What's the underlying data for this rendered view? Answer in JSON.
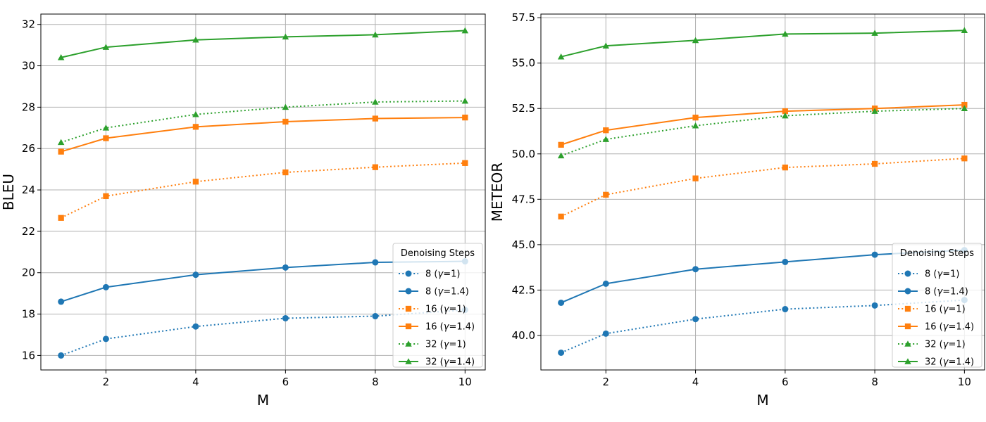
{
  "chart_data": [
    {
      "type": "line",
      "xlabel": "M",
      "ylabel": "BLEU",
      "x": [
        1,
        2,
        4,
        6,
        8,
        10
      ],
      "xlim": [
        0.55,
        10.45
      ],
      "ylim": [
        15.3,
        32.5
      ],
      "xticks": [
        2,
        4,
        6,
        8,
        10
      ],
      "xtick_labels": [
        "2",
        "4",
        "6",
        "8",
        "10"
      ],
      "yticks": [
        16,
        18,
        20,
        22,
        24,
        26,
        28,
        30,
        32
      ],
      "ytick_labels": [
        "16",
        "18",
        "20",
        "22",
        "24",
        "26",
        "28",
        "30",
        "32"
      ],
      "grid": true,
      "legend": {
        "title": "Denoising Steps",
        "placement": "lower-right"
      },
      "series": [
        {
          "name": "8",
          "gamma": "1",
          "values": [
            16.0,
            16.8,
            17.4,
            17.8,
            17.9,
            18.2
          ],
          "color": "#1f77b4",
          "linestyle": "dotted",
          "marker": "circle"
        },
        {
          "name": "8",
          "gamma": "1.4",
          "values": [
            18.6,
            19.3,
            19.9,
            20.25,
            20.5,
            20.55
          ],
          "color": "#1f77b4",
          "linestyle": "solid",
          "marker": "circle"
        },
        {
          "name": "16",
          "gamma": "1",
          "values": [
            22.65,
            23.7,
            24.4,
            24.85,
            25.1,
            25.3
          ],
          "color": "#ff7f0e",
          "linestyle": "dotted",
          "marker": "square"
        },
        {
          "name": "16",
          "gamma": "1.4",
          "values": [
            25.85,
            26.5,
            27.05,
            27.3,
            27.45,
            27.5
          ],
          "color": "#ff7f0e",
          "linestyle": "solid",
          "marker": "square"
        },
        {
          "name": "32",
          "gamma": "1",
          "values": [
            26.3,
            27.0,
            27.65,
            28.0,
            28.25,
            28.3
          ],
          "color": "#2ca02c",
          "linestyle": "dotted",
          "marker": "triangle"
        },
        {
          "name": "32",
          "gamma": "1.4",
          "values": [
            30.4,
            30.9,
            31.25,
            31.4,
            31.5,
            31.7
          ],
          "color": "#2ca02c",
          "linestyle": "solid",
          "marker": "triangle"
        }
      ]
    },
    {
      "type": "line",
      "xlabel": "M",
      "ylabel": "METEOR",
      "x": [
        1,
        2,
        4,
        6,
        8,
        10
      ],
      "xlim": [
        0.55,
        10.45
      ],
      "ylim": [
        38.1,
        57.7
      ],
      "xticks": [
        2,
        4,
        6,
        8,
        10
      ],
      "xtick_labels": [
        "2",
        "4",
        "6",
        "8",
        "10"
      ],
      "yticks": [
        40.0,
        42.5,
        45.0,
        47.5,
        50.0,
        52.5,
        55.0,
        57.5
      ],
      "ytick_labels": [
        "40.0",
        "42.5",
        "45.0",
        "47.5",
        "50.0",
        "52.5",
        "55.0",
        "57.5"
      ],
      "grid": true,
      "legend": {
        "title": "Denoising Steps",
        "placement": "lower-right"
      },
      "series": [
        {
          "name": "8",
          "gamma": "1",
          "values": [
            39.05,
            40.1,
            40.9,
            41.45,
            41.65,
            41.95
          ],
          "color": "#1f77b4",
          "linestyle": "dotted",
          "marker": "circle"
        },
        {
          "name": "8",
          "gamma": "1.4",
          "values": [
            41.8,
            42.85,
            43.65,
            44.05,
            44.45,
            44.7
          ],
          "color": "#1f77b4",
          "linestyle": "solid",
          "marker": "circle"
        },
        {
          "name": "16",
          "gamma": "1",
          "values": [
            46.55,
            47.75,
            48.65,
            49.25,
            49.45,
            49.75
          ],
          "color": "#ff7f0e",
          "linestyle": "dotted",
          "marker": "square"
        },
        {
          "name": "16",
          "gamma": "1.4",
          "values": [
            50.5,
            51.3,
            52.0,
            52.35,
            52.5,
            52.7
          ],
          "color": "#ff7f0e",
          "linestyle": "solid",
          "marker": "square"
        },
        {
          "name": "32",
          "gamma": "1",
          "values": [
            49.9,
            50.8,
            51.55,
            52.1,
            52.35,
            52.5
          ],
          "color": "#2ca02c",
          "linestyle": "dotted",
          "marker": "triangle"
        },
        {
          "name": "32",
          "gamma": "1.4",
          "values": [
            55.35,
            55.95,
            56.25,
            56.6,
            56.65,
            56.8
          ],
          "color": "#2ca02c",
          "linestyle": "solid",
          "marker": "triangle"
        }
      ]
    }
  ]
}
